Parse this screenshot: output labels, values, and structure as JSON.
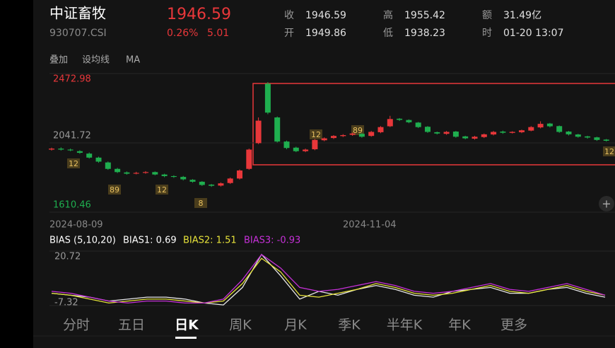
{
  "header": {
    "name": "中证畜牧",
    "code": "930707.CSI",
    "price": "1946.59",
    "change_pct": "0.26%",
    "change": "5.01",
    "stats": [
      [
        "收",
        "1946.59"
      ],
      [
        "高",
        "1955.42"
      ],
      [
        "额",
        "31.49亿"
      ],
      [
        "开",
        "1949.86"
      ],
      [
        "低",
        "1938.23"
      ],
      [
        "时",
        "01-20 13:07"
      ]
    ]
  },
  "toolbar": [
    "叠加",
    "设均线",
    "MA"
  ],
  "tabs": [
    "分时",
    "五日",
    "日K",
    "周K",
    "月K",
    "季K",
    "半年K",
    "年K",
    "更多"
  ],
  "chart_data": [
    {
      "type": "candlestick",
      "up_color": "#e8373a",
      "down_color": "#1fae4f",
      "ylim": [
        1610.46,
        2472.98
      ],
      "yticks": [
        2472.98,
        2041.72,
        1610.46
      ],
      "x_labels": [
        "2024-08-09",
        "2024-11-04"
      ],
      "annotations": [
        "12",
        "89",
        "12",
        "8",
        "12",
        "89",
        "12"
      ],
      "open": [
        2000,
        2006,
        2000,
        1990,
        1975,
        1950,
        1920,
        1880,
        1858,
        1850,
        1855,
        1860,
        1845,
        1835,
        1830,
        1812,
        1800,
        1782,
        1776,
        1792,
        1820,
        1880,
        2040,
        2410,
        2200,
        2050,
        2012,
        1990,
        2002,
        2058,
        2072,
        2084,
        2092,
        2098,
        2085,
        2108,
        2145,
        2192,
        2184,
        2168,
        2142,
        2108,
        2098,
        2112,
        2082,
        2068,
        2078,
        2094,
        2112,
        2104,
        2108,
        2118,
        2138,
        2162,
        2146,
        2112,
        2094,
        2082,
        2076,
        2062
      ],
      "close": [
        2006,
        2000,
        1995,
        1980,
        1950,
        1925,
        1880,
        1860,
        1850,
        1855,
        1860,
        1845,
        1835,
        1830,
        1815,
        1800,
        1780,
        1775,
        1790,
        1820,
        1870,
        2000,
        2180,
        2230,
        2050,
        2010,
        1990,
        2000,
        2060,
        2070,
        2085,
        2090,
        2100,
        2080,
        2110,
        2140,
        2190,
        2185,
        2170,
        2140,
        2110,
        2100,
        2110,
        2080,
        2070,
        2080,
        2095,
        2110,
        2105,
        2110,
        2120,
        2140,
        2160,
        2145,
        2110,
        2095,
        2080,
        2075,
        2060,
        2055
      ],
      "high": [
        2012,
        2014,
        2006,
        1996,
        1982,
        1956,
        1926,
        1886,
        1864,
        1862,
        1866,
        1864,
        1850,
        1840,
        1836,
        1816,
        1804,
        1786,
        1796,
        1826,
        1876,
        2006,
        2200,
        2420,
        2206,
        2056,
        2018,
        2006,
        2066,
        2076,
        2090,
        2096,
        2106,
        2102,
        2116,
        2146,
        2210,
        2196,
        2188,
        2172,
        2146,
        2112,
        2116,
        2116,
        2086,
        2086,
        2100,
        2116,
        2118,
        2114,
        2124,
        2146,
        2176,
        2166,
        2150,
        2116,
        2098,
        2086,
        2080,
        2066
      ],
      "low": [
        1994,
        1994,
        1990,
        1974,
        1944,
        1918,
        1874,
        1854,
        1844,
        1846,
        1850,
        1840,
        1828,
        1824,
        1808,
        1794,
        1774,
        1768,
        1770,
        1786,
        1814,
        1874,
        2034,
        2220,
        2044,
        2002,
        1984,
        1984,
        1996,
        2052,
        2066,
        2078,
        2086,
        2074,
        2080,
        2102,
        2140,
        2178,
        2164,
        2134,
        2104,
        2094,
        2092,
        2074,
        2064,
        2062,
        2072,
        2088,
        2098,
        2100,
        2102,
        2114,
        2132,
        2138,
        2104,
        2088,
        2074,
        2068,
        2054,
        2050
      ]
    },
    {
      "type": "line",
      "legend": [
        "BIAS (5,10,20)",
        "BIAS1: 0.69",
        "BIAS2: 1.51",
        "BIAS3: -0.93"
      ],
      "ylim": [
        -7.32,
        20.72
      ],
      "yticks": [
        20.72,
        -7.32
      ],
      "series": [
        {
          "name": "BIAS1",
          "color": "#e8e8e8",
          "values": [
            -1,
            -2,
            -3,
            -5,
            -4,
            -3,
            -3,
            -4,
            -6,
            -7,
            2,
            19,
            8,
            -4,
            0,
            -2,
            1,
            3,
            1,
            -2,
            -3,
            0,
            1,
            2,
            -1,
            -1,
            1,
            2,
            -1,
            -3
          ]
        },
        {
          "name": "BIAS2",
          "color": "#e6e23a",
          "values": [
            -1,
            -2,
            -4,
            -6,
            -5,
            -4,
            -4,
            -5,
            -6,
            -5,
            4,
            17,
            10,
            -2,
            -3,
            -1,
            1,
            4,
            2,
            -1,
            -2,
            -1,
            1,
            3,
            0,
            -1,
            1,
            3,
            0,
            -2
          ]
        },
        {
          "name": "BIAS3",
          "color": "#c630d8",
          "values": [
            0,
            -1,
            -3,
            -5,
            -6,
            -5,
            -5,
            -6,
            -6,
            -4,
            6,
            19,
            12,
            2,
            0,
            1,
            3,
            5,
            3,
            0,
            -1,
            0,
            2,
            4,
            1,
            0,
            2,
            4,
            1,
            -2
          ]
        }
      ]
    }
  ]
}
